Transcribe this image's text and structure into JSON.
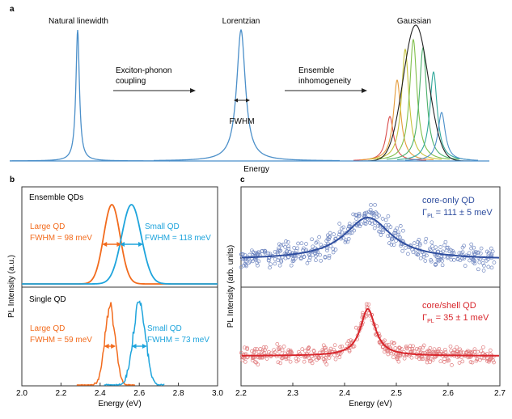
{
  "panel_a": {
    "label": "a",
    "titles": [
      "Natural linewidth",
      "Lorentzian",
      "Gaussian"
    ],
    "arrow1_text": [
      "Exciton-phonon",
      "coupling"
    ],
    "arrow2_text": [
      "Ensemble",
      "inhomogeneity"
    ],
    "fwhm_label": "FWHM",
    "xlabel": "Energy",
    "line_color": "#4b8fc9"
  },
  "panel_b": {
    "label": "b",
    "ylabel": "PL Intensity (a.u.)",
    "xlabel": "Energy (eV)",
    "ticks": [
      "2.0",
      "2.2",
      "2.4",
      "2.6",
      "2.8",
      "3.0"
    ],
    "top_title": "Ensemble QDs",
    "bottom_title": "Single QD",
    "large_label": "Large QD",
    "small_label": "Small QD",
    "large_fwhm_top": "FWHM = 98 meV",
    "small_fwhm_top": "FWHM = 118 meV",
    "large_fwhm_bottom": "FWHM = 59 meV",
    "small_fwhm_bottom": "FWHM = 73 meV",
    "colors": {
      "large": "#f26b1d",
      "small": "#1ea4dc"
    }
  },
  "panel_c": {
    "label": "c",
    "ylabel": "PL Intensity (arb. units)",
    "xlabel": "Energy (eV)",
    "ticks": [
      "2.2",
      "2.3",
      "2.4",
      "2.5",
      "2.6",
      "2.7"
    ],
    "top_label": "core-only QD",
    "top_gamma": "= 111 ± 5 meV",
    "bottom_label": "core/shell QD",
    "bottom_gamma": "= 35 ± 1 meV",
    "gamma_symbol": "Γ",
    "gamma_sub": "PL",
    "colors": {
      "top": "#2f4e9f",
      "bottom": "#d8262c"
    }
  },
  "chart_data": [
    {
      "type": "line",
      "panel": "a",
      "xlabel": "Energy",
      "series": [
        {
          "name": "Natural linewidth",
          "values": []
        },
        {
          "name": "Lorentzian",
          "values": []
        },
        {
          "name": "Gaussian",
          "values": []
        }
      ]
    },
    {
      "type": "line",
      "panel": "b",
      "xlabel": "Energy (eV)",
      "ylabel": "PL Intensity (a.u.)",
      "xlim": [
        2.0,
        3.0
      ],
      "subplots": [
        {
          "title": "Ensemble QDs",
          "series": [
            {
              "name": "Large QD",
              "peak": 2.46,
              "fwhm_meV": 98
            },
            {
              "name": "Small QD",
              "peak": 2.56,
              "fwhm_meV": 118
            }
          ]
        },
        {
          "title": "Single QD",
          "series": [
            {
              "name": "Large QD",
              "peak": 2.45,
              "fwhm_meV": 59
            },
            {
              "name": "Small QD",
              "peak": 2.6,
              "fwhm_meV": 73
            }
          ]
        }
      ]
    },
    {
      "type": "scatter",
      "panel": "c",
      "xlabel": "Energy (eV)",
      "ylabel": "PL Intensity (arb. units)",
      "xlim": [
        2.2,
        2.7
      ],
      "subplots": [
        {
          "name": "core-only QD",
          "peak": 2.445,
          "fwhm_meV": 111
        },
        {
          "name": "core/shell QD",
          "peak": 2.445,
          "fwhm_meV": 35
        }
      ]
    }
  ]
}
